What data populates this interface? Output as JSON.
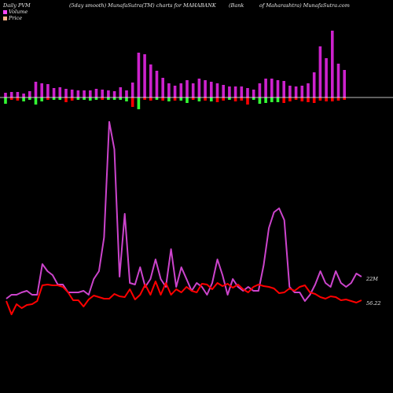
{
  "header": {
    "left": "Daily PVM",
    "center_left": "(5day smooth) MunafaSutra(TM) charts for MAHABANK",
    "center_right": "(Bank",
    "right": "of Maharashtra) MunafaSutra.com"
  },
  "legend": [
    {
      "label": "Volume",
      "color": "#ff44ff"
    },
    {
      "label": "Price",
      "color": "#ffb38a"
    }
  ],
  "colors": {
    "volume_line": "#cc44cc",
    "price_line": "#ff0000",
    "bar_up": "#cc22cc",
    "bar_down": "#ff0000",
    "bar_neg_green": "#33ff33",
    "axis": "#ffffff"
  },
  "chart_data": {
    "type": "line",
    "end_labels": {
      "volume": "22M",
      "price": "56.22"
    },
    "volume_line": [
      20,
      25,
      25,
      28,
      30,
      25,
      25,
      64,
      55,
      50,
      38,
      38,
      28,
      28,
      28,
      30,
      25,
      45,
      55,
      98,
      245,
      210,
      48,
      128,
      40,
      38,
      60,
      35,
      45,
      70,
      45,
      35,
      83,
      35,
      60,
      45,
      30,
      40,
      35,
      25,
      40,
      70,
      50,
      25,
      45,
      35,
      30,
      35,
      30,
      30,
      63,
      110,
      130,
      135,
      120,
      35,
      28,
      28,
      17,
      25,
      38,
      55,
      40,
      35,
      55,
      40,
      35,
      40,
      52,
      48
    ],
    "price_line": [
      17,
      0,
      13,
      8,
      12,
      13,
      17,
      37,
      38,
      37,
      37,
      35,
      28,
      18,
      18,
      10,
      19,
      24,
      22,
      20,
      20,
      26,
      23,
      22,
      32,
      19,
      25,
      38,
      25,
      42,
      25,
      40,
      25,
      32,
      28,
      35,
      30,
      28,
      39,
      38,
      32,
      40,
      36,
      39,
      34,
      38,
      32,
      28,
      35,
      38,
      36,
      35,
      33,
      27,
      28,
      33,
      30,
      35,
      37,
      28,
      26,
      22,
      20,
      23,
      22,
      18,
      19,
      17,
      15,
      18
    ],
    "bars": [
      {
        "up": 6,
        "dn": -8,
        "dn_color": "green"
      },
      {
        "up": 7,
        "dn": -3,
        "dn_color": "red"
      },
      {
        "up": 7,
        "dn": -4,
        "dn_color": "red"
      },
      {
        "up": 5,
        "dn": -5,
        "dn_color": "green"
      },
      {
        "up": 8,
        "dn": -3,
        "dn_color": "green"
      },
      {
        "up": 20,
        "dn": -9,
        "dn_color": "green"
      },
      {
        "up": 18,
        "dn": -5,
        "dn_color": "green"
      },
      {
        "up": 17,
        "dn": -3,
        "dn_color": "red"
      },
      {
        "up": 12,
        "dn": -3,
        "dn_color": "green"
      },
      {
        "up": 13,
        "dn": -3,
        "dn_color": "green"
      },
      {
        "up": 11,
        "dn": -6,
        "dn_color": "red"
      },
      {
        "up": 10,
        "dn": -4,
        "dn_color": "red"
      },
      {
        "up": 9,
        "dn": -3,
        "dn_color": "green"
      },
      {
        "up": 9,
        "dn": -3,
        "dn_color": "green"
      },
      {
        "up": 9,
        "dn": -4,
        "dn_color": "green"
      },
      {
        "up": 11,
        "dn": -3,
        "dn_color": "green"
      },
      {
        "up": 10,
        "dn": -3,
        "dn_color": "red"
      },
      {
        "up": 9,
        "dn": -3,
        "dn_color": "green"
      },
      {
        "up": 8,
        "dn": -3,
        "dn_color": "green"
      },
      {
        "up": 13,
        "dn": -3,
        "dn_color": "green"
      },
      {
        "up": 9,
        "dn": -5,
        "dn_color": "green"
      },
      {
        "up": 19,
        "dn": -12,
        "dn_color": "red"
      },
      {
        "up": 57,
        "dn": -15,
        "dn_color": "green"
      },
      {
        "up": 55,
        "dn": -3,
        "dn_color": "red"
      },
      {
        "up": 42,
        "dn": -4,
        "dn_color": "red"
      },
      {
        "up": 34,
        "dn": -3,
        "dn_color": "green"
      },
      {
        "up": 25,
        "dn": -4,
        "dn_color": "red"
      },
      {
        "up": 18,
        "dn": -5,
        "dn_color": "green"
      },
      {
        "up": 15,
        "dn": -4,
        "dn_color": "red"
      },
      {
        "up": 18,
        "dn": -4,
        "dn_color": "green"
      },
      {
        "up": 22,
        "dn": -7,
        "dn_color": "green"
      },
      {
        "up": 18,
        "dn": -3,
        "dn_color": "red"
      },
      {
        "up": 24,
        "dn": -5,
        "dn_color": "green"
      },
      {
        "up": 22,
        "dn": -4,
        "dn_color": "red"
      },
      {
        "up": 20,
        "dn": -5,
        "dn_color": "green"
      },
      {
        "up": 18,
        "dn": -6,
        "dn_color": "red"
      },
      {
        "up": 16,
        "dn": -4,
        "dn_color": "red"
      },
      {
        "up": 14,
        "dn": -3,
        "dn_color": "green"
      },
      {
        "up": 14,
        "dn": -5,
        "dn_color": "red"
      },
      {
        "up": 14,
        "dn": -4,
        "dn_color": "red"
      },
      {
        "up": 12,
        "dn": -9,
        "dn_color": "red"
      },
      {
        "up": 10,
        "dn": -3,
        "dn_color": "green"
      },
      {
        "up": 18,
        "dn": -8,
        "dn_color": "green"
      },
      {
        "up": 24,
        "dn": -7,
        "dn_color": "green"
      },
      {
        "up": 24,
        "dn": -6,
        "dn_color": "green"
      },
      {
        "up": 22,
        "dn": -6,
        "dn_color": "green"
      },
      {
        "up": 21,
        "dn": -7,
        "dn_color": "red"
      },
      {
        "up": 15,
        "dn": -5,
        "dn_color": "red"
      },
      {
        "up": 14,
        "dn": -3,
        "dn_color": "red"
      },
      {
        "up": 15,
        "dn": -5,
        "dn_color": "red"
      },
      {
        "up": 18,
        "dn": -6,
        "dn_color": "red"
      },
      {
        "up": 32,
        "dn": -7,
        "dn_color": "red"
      },
      {
        "up": 65,
        "dn": -4,
        "dn_color": "red"
      },
      {
        "up": 50,
        "dn": -5,
        "dn_color": "red"
      },
      {
        "up": 85,
        "dn": -5,
        "dn_color": "red"
      },
      {
        "up": 43,
        "dn": -4,
        "dn_color": "red"
      },
      {
        "up": 35,
        "dn": -3,
        "dn_color": "red"
      }
    ]
  }
}
